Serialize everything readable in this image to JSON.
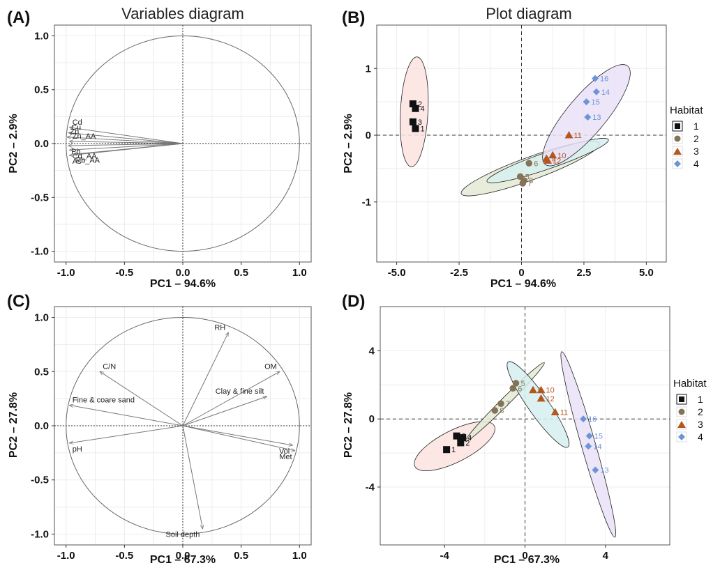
{
  "colors": {
    "habitat1": "#111111",
    "habitat2": "#857358",
    "habitat3": "#b4571f",
    "habitat4": "#6f93d8",
    "ellipse1": "#fbe3e1",
    "ellipse2": "#e3ead3",
    "ellipse3": "#d6f0f0",
    "ellipse4": "#e9e2f7"
  },
  "legend_A": {
    "title": "Habitat",
    "items": [
      "1",
      "2",
      "3",
      "4"
    ]
  },
  "legend_B": {
    "title": "Habitat",
    "items": [
      "1",
      "2",
      "3",
      "4"
    ]
  },
  "chart_data": [
    {
      "id": "A",
      "type": "scatter",
      "subtype": "correlation-circle",
      "panel_label": "(A)",
      "title": "Variables diagram",
      "xlabel": "PC1 – 94.6%",
      "ylabel": "PC2 – 2.9%",
      "xlim": [
        -1.1,
        1.1
      ],
      "ylim": [
        -1.1,
        1.1
      ],
      "xticks": [
        -1.0,
        -0.5,
        0.0,
        0.5,
        1.0
      ],
      "xtick_labels": [
        "-1.0",
        "-0.5",
        "0.0",
        "0.5",
        "1.0"
      ],
      "yticks": [
        -1.0,
        -0.5,
        0.0,
        0.5,
        1.0
      ],
      "ytick_labels": [
        "-1.0",
        "-0.5",
        "0.0",
        "0.5",
        "1.0"
      ],
      "grid": true,
      "vectors": [
        {
          "name": "Cd",
          "x": -0.97,
          "y": 0.15
        },
        {
          "name": "Cu",
          "x": -0.98,
          "y": 0.1
        },
        {
          "name": "Zn",
          "x": -0.99,
          "y": 0.06
        },
        {
          "name": "Zn_AA",
          "x": -0.97,
          "y": 0.02
        },
        {
          "name": "Pb",
          "x": -0.98,
          "y": -0.02
        },
        {
          "name": "Cd_AA",
          "x": -0.97,
          "y": -0.06
        },
        {
          "name": "Pb_AA",
          "x": -0.94,
          "y": -0.1
        },
        {
          "name": "As",
          "x": -0.97,
          "y": -0.11
        }
      ]
    },
    {
      "id": "B",
      "type": "scatter",
      "panel_label": "(B)",
      "title": "Plot diagram",
      "xlabel": "PC1 – 94.6%",
      "ylabel": "PC2 – 2.9%",
      "xlim": [
        -5.8,
        5.8
      ],
      "ylim": [
        -1.9,
        1.65
      ],
      "xticks": [
        -5.0,
        -2.5,
        0.0,
        2.5,
        5.0
      ],
      "xtick_labels": [
        "-5.0",
        "-2.5",
        "0",
        "2.5",
        "5.0"
      ],
      "yticks": [
        -1,
        0,
        1
      ],
      "ytick_labels": [
        "-1",
        "0",
        "1"
      ],
      "grid": true,
      "legend": "right",
      "ellipses": [
        {
          "habitat": "1",
          "cx": -4.3,
          "cy": 0.35,
          "rx": 1.2,
          "ry": 0.3,
          "angle_deg": 87
        },
        {
          "habitat": "2",
          "cx": 0.35,
          "cy": -0.5,
          "rx": 1.6,
          "ry": 0.25,
          "angle_deg": 20
        },
        {
          "habitat": "3",
          "cx": 1.05,
          "cy": -0.38,
          "rx": 1.4,
          "ry": 0.18,
          "angle_deg": 19
        },
        {
          "habitat": "4",
          "cx": 2.6,
          "cy": 0.3,
          "rx": 1.4,
          "ry": 0.42,
          "angle_deg": 50
        }
      ],
      "points": [
        {
          "habitat": "1",
          "label": "1",
          "x": -4.25,
          "y": 0.1
        },
        {
          "habitat": "1",
          "label": "2",
          "x": -4.35,
          "y": 0.47
        },
        {
          "habitat": "1",
          "label": "3",
          "x": -4.35,
          "y": 0.2
        },
        {
          "habitat": "1",
          "label": "4",
          "x": -4.25,
          "y": 0.4
        },
        {
          "habitat": "2",
          "label": "5",
          "x": -0.05,
          "y": -0.62
        },
        {
          "habitat": "2",
          "label": "6",
          "x": 0.3,
          "y": -0.42
        },
        {
          "habitat": "2",
          "label": "7",
          "x": 0.05,
          "y": -0.72
        },
        {
          "habitat": "2",
          "label": "8",
          "x": 0.1,
          "y": -0.68
        },
        {
          "habitat": "3",
          "label": "9",
          "x": 1.0,
          "y": -0.35
        },
        {
          "habitat": "3",
          "label": "10",
          "x": 1.25,
          "y": -0.3
        },
        {
          "habitat": "3",
          "label": "11",
          "x": 1.9,
          "y": 0.0
        },
        {
          "habitat": "3",
          "label": "12",
          "x": 1.05,
          "y": -0.38
        },
        {
          "habitat": "4",
          "label": "13",
          "x": 2.65,
          "y": 0.27
        },
        {
          "habitat": "4",
          "label": "14",
          "x": 3.0,
          "y": 0.65
        },
        {
          "habitat": "4",
          "label": "15",
          "x": 2.6,
          "y": 0.5
        },
        {
          "habitat": "4",
          "label": "16",
          "x": 2.95,
          "y": 0.85
        }
      ]
    },
    {
      "id": "C",
      "type": "scatter",
      "subtype": "correlation-circle",
      "panel_label": "(C)",
      "xlabel": "PC1 – 67.3%",
      "ylabel": "PC2 – 27.8%",
      "xlim": [
        -1.1,
        1.1
      ],
      "ylim": [
        -1.1,
        1.1
      ],
      "xticks": [
        -1.0,
        -0.5,
        0.0,
        0.5,
        1.0
      ],
      "xtick_labels": [
        "-1.0",
        "-0.5",
        "0.0",
        "0.5",
        "1.0"
      ],
      "yticks": [
        -1.0,
        -0.5,
        0.0,
        0.5,
        1.0
      ],
      "ytick_labels": [
        "-1.0",
        "-0.5",
        "0.0",
        "0.5",
        "1.0"
      ],
      "grid": true,
      "vectors": [
        {
          "name": "RH",
          "x": 0.39,
          "y": 0.86
        },
        {
          "name": "OM",
          "x": 0.83,
          "y": 0.5
        },
        {
          "name": "C/N",
          "x": -0.71,
          "y": 0.5
        },
        {
          "name": "Clay & fine silt",
          "x": 0.72,
          "y": 0.27
        },
        {
          "name": "Fine & coare sand",
          "x": -0.97,
          "y": 0.19
        },
        {
          "name": "pH",
          "x": -0.97,
          "y": -0.16
        },
        {
          "name": "Vol",
          "x": 0.94,
          "y": -0.18
        },
        {
          "name": "Met",
          "x": 0.96,
          "y": -0.23
        },
        {
          "name": "Soil depth",
          "x": 0.17,
          "y": -0.95
        }
      ]
    },
    {
      "id": "D",
      "type": "scatter",
      "panel_label": "(D)",
      "xlabel": "PC1 – 67.3%",
      "ylabel": "PC2 – 27.8%",
      "xlim": [
        -7.2,
        7.2
      ],
      "ylim": [
        -7.4,
        6.6
      ],
      "xticks": [
        -4,
        0,
        4
      ],
      "xtick_labels": [
        "-4",
        "0",
        "4"
      ],
      "yticks": [
        -4,
        0,
        4
      ],
      "ytick_labels": [
        "-4",
        "0",
        "4"
      ],
      "grid": true,
      "legend": "right",
      "ellipses": [
        {
          "habitat": "1",
          "cx": -3.5,
          "cy": -1.6,
          "rx": 2.4,
          "ry": 0.85,
          "angle_deg": 27
        },
        {
          "habitat": "2",
          "cx": -1.0,
          "cy": 1.0,
          "rx": 3.0,
          "ry": 0.22,
          "angle_deg": 45
        },
        {
          "habitat": "3",
          "cx": 0.65,
          "cy": 0.85,
          "rx": 2.8,
          "ry": 0.55,
          "angle_deg": -55
        },
        {
          "habitat": "4",
          "cx": 3.15,
          "cy": -1.5,
          "rx": 5.2,
          "ry": 0.38,
          "angle_deg": -74
        }
      ],
      "points": [
        {
          "habitat": "1",
          "label": "1",
          "x": -3.9,
          "y": -1.8
        },
        {
          "habitat": "1",
          "label": "2",
          "x": -3.2,
          "y": -1.4
        },
        {
          "habitat": "1",
          "label": "3",
          "x": -3.4,
          "y": -1.0
        },
        {
          "habitat": "1",
          "label": "4",
          "x": -3.1,
          "y": -1.1
        },
        {
          "habitat": "2",
          "label": "5",
          "x": -0.45,
          "y": 2.1
        },
        {
          "habitat": "2",
          "label": "6",
          "x": -0.6,
          "y": 1.8
        },
        {
          "habitat": "2",
          "label": "7",
          "x": -1.2,
          "y": 0.9
        },
        {
          "habitat": "2",
          "label": "8",
          "x": -1.5,
          "y": 0.5
        },
        {
          "habitat": "3",
          "label": "9",
          "x": 0.4,
          "y": 1.7
        },
        {
          "habitat": "3",
          "label": "10",
          "x": 0.8,
          "y": 1.7
        },
        {
          "habitat": "3",
          "label": "11",
          "x": 1.5,
          "y": 0.4
        },
        {
          "habitat": "3",
          "label": "12",
          "x": 0.8,
          "y": 1.2
        },
        {
          "habitat": "4",
          "label": "13",
          "x": 3.5,
          "y": -3.0
        },
        {
          "habitat": "4",
          "label": "14",
          "x": 3.15,
          "y": -1.6
        },
        {
          "habitat": "4",
          "label": "15",
          "x": 3.2,
          "y": -1.0
        },
        {
          "habitat": "4",
          "label": "16",
          "x": 2.9,
          "y": 0.0
        }
      ]
    }
  ]
}
